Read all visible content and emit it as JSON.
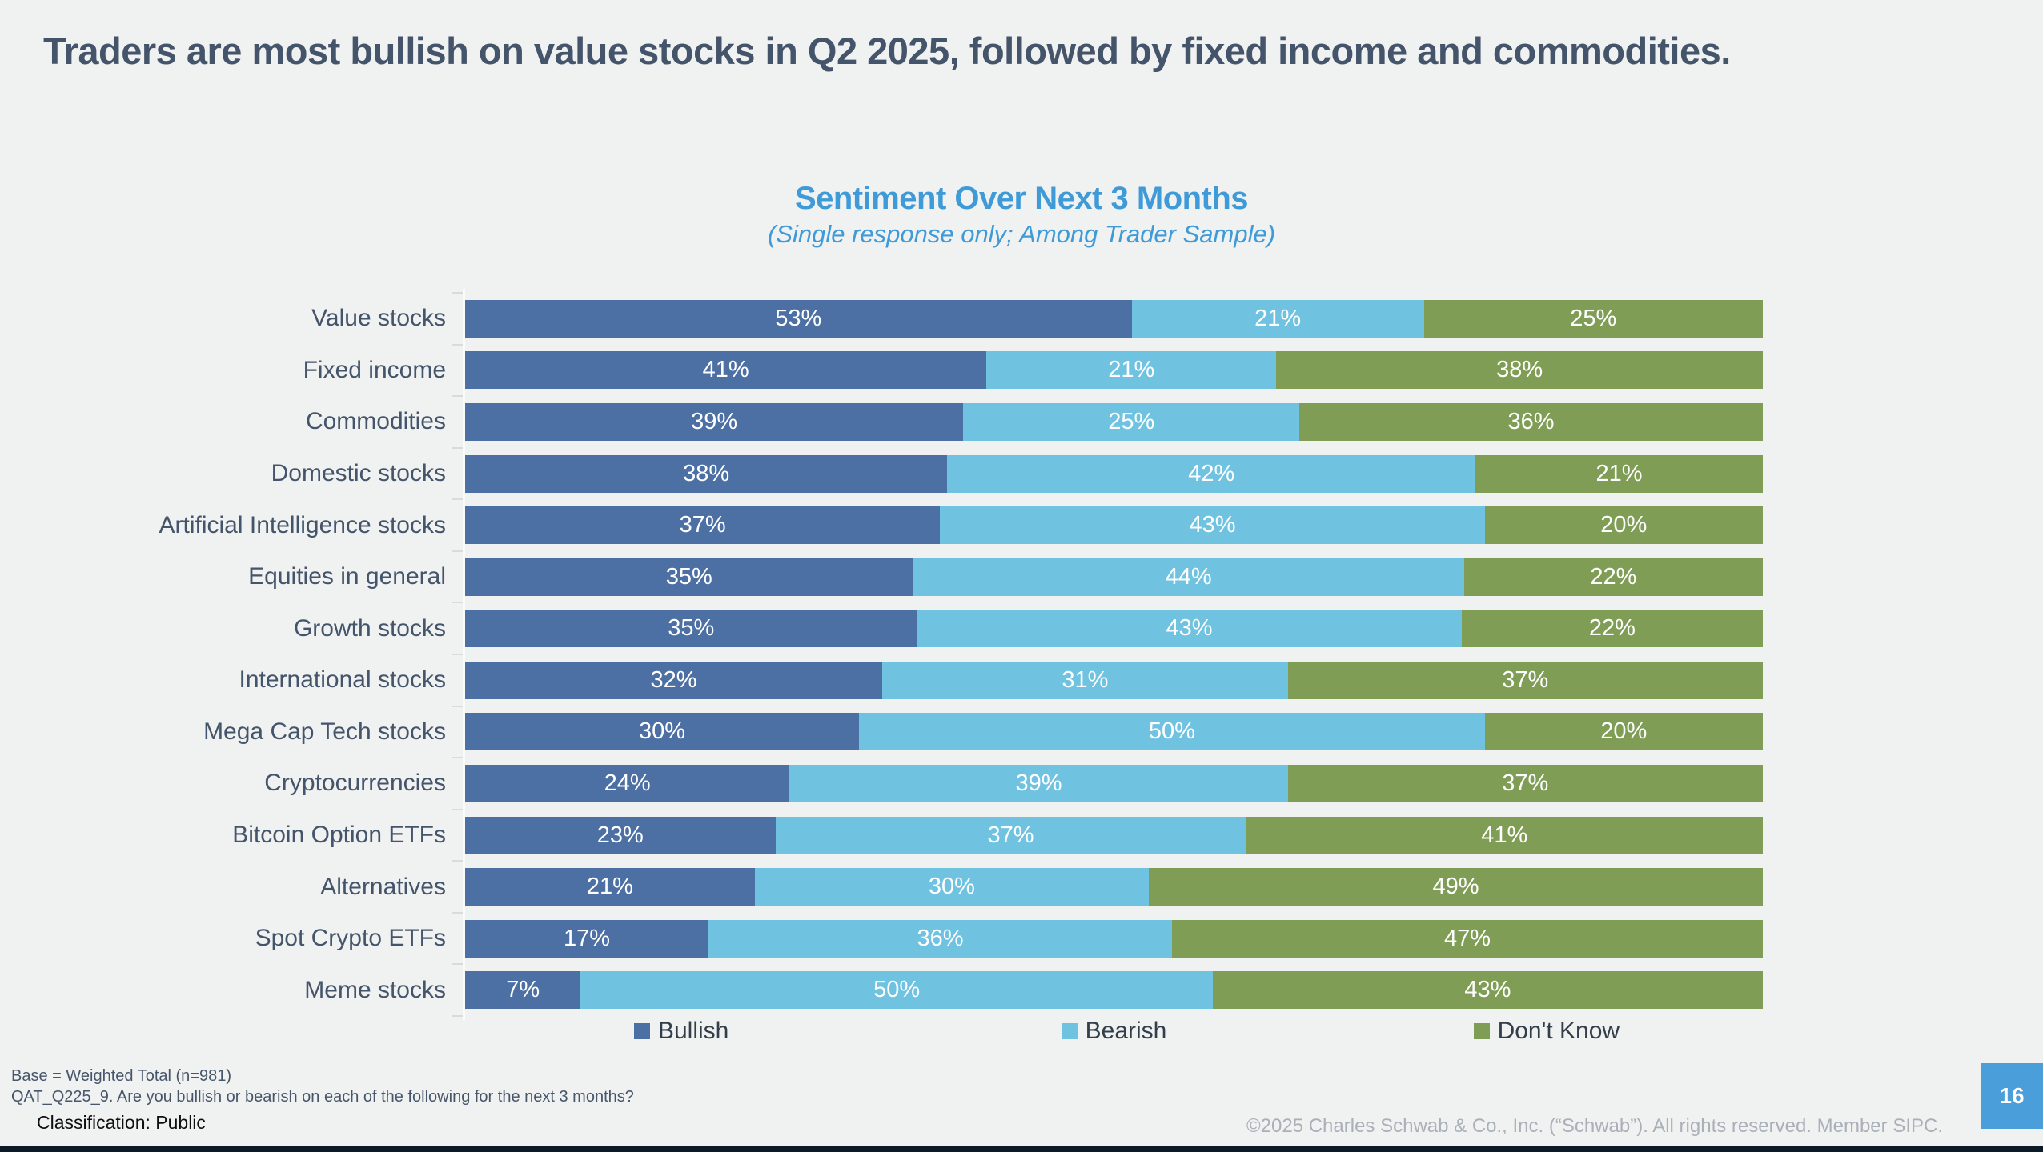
{
  "page": {
    "title": "Traders are most bullish on value stocks in Q2 2025, followed by fixed income and commodities.",
    "background_color": "#f0f1f1",
    "title_color": "#44546a",
    "footer": {
      "base_note": "Base = Weighted Total (n=981)",
      "question_note": "QAT_Q225_9. Are you bullish or bearish on each of the following for the next 3 months?",
      "classification": "Classification: Public",
      "copyright": "©2025 Charles Schwab & Co., Inc. (“Schwab”). All rights reserved. Member SIPC.",
      "page_number": "16",
      "page_badge_color": "#4a9ed9"
    }
  },
  "chart_data": {
    "type": "bar",
    "orientation": "horizontal-stacked",
    "title": "Sentiment Over Next 3 Months",
    "subtitle": "(Single response only; Among Trader Sample)",
    "title_color": "#3f9ad8",
    "xlim": [
      0,
      100
    ],
    "value_suffix": "%",
    "legend_position": "bottom",
    "grid": false,
    "categories": [
      "Value stocks",
      "Fixed income",
      "Commodities",
      "Domestic stocks",
      "Artificial Intelligence stocks",
      "Equities in general",
      "Growth stocks",
      "International stocks",
      "Mega Cap Tech stocks",
      "Cryptocurrencies",
      "Bitcoin Option ETFs",
      "Alternatives",
      "Spot Crypto ETFs",
      "Meme stocks"
    ],
    "series": [
      {
        "name": "Bullish",
        "color": "#4c6fa4",
        "values": [
          53,
          41,
          39,
          38,
          37,
          35,
          35,
          32,
          30,
          24,
          23,
          21,
          17,
          7
        ]
      },
      {
        "name": "Bearish",
        "color": "#6fc3e1",
        "values": [
          21,
          21,
          25,
          42,
          43,
          44,
          43,
          31,
          50,
          39,
          37,
          30,
          36,
          50
        ]
      },
      {
        "name": "Don't Know",
        "color": "#7f9d55",
        "values": [
          25,
          38,
          36,
          21,
          20,
          22,
          22,
          37,
          20,
          37,
          41,
          49,
          47,
          43
        ]
      }
    ]
  }
}
